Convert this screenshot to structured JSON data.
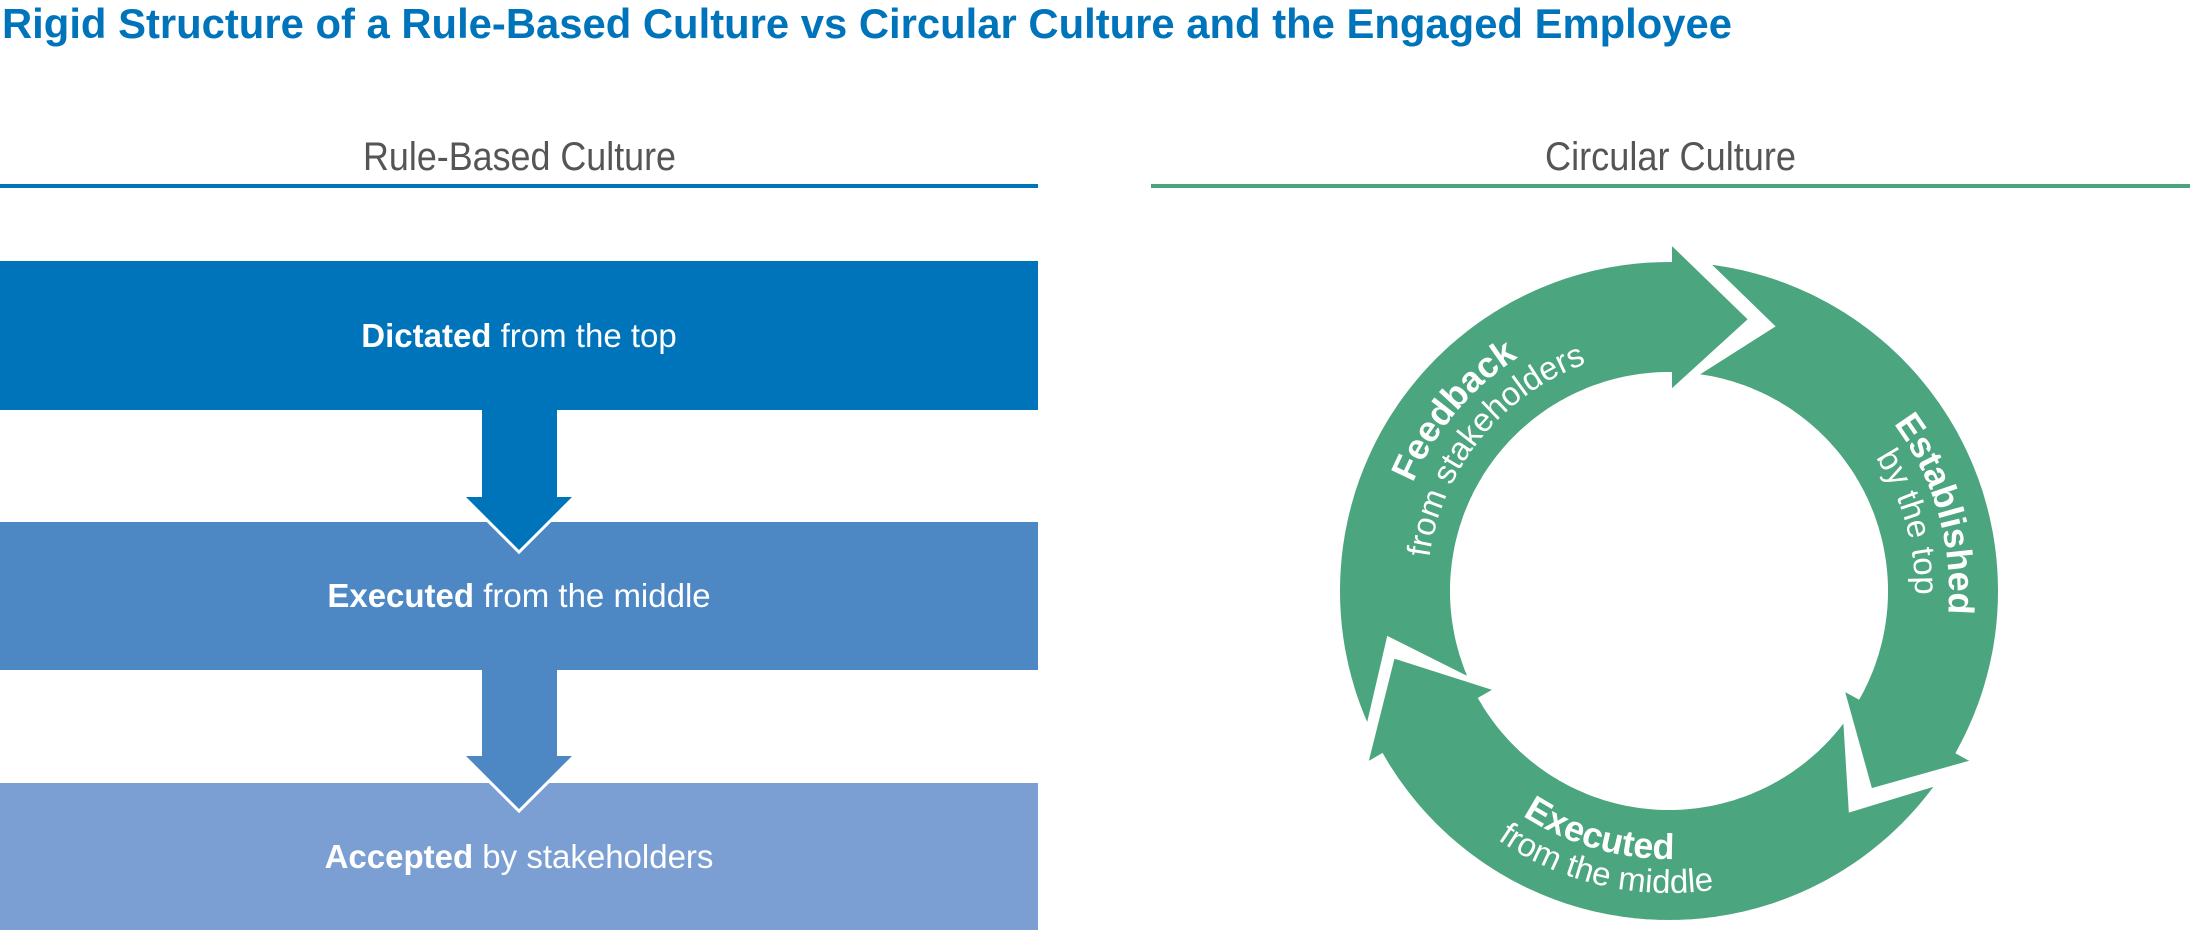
{
  "title": "Rigid Structure of a Rule-Based Culture vs Circular Culture and the Engaged Employee",
  "colors": {
    "title": "#0074bb",
    "heading_text": "#555555",
    "rule_line": "#0074bb",
    "circular_line": "#4aa57e",
    "box_top": "#0074bb",
    "box_middle": "#4d88c5",
    "box_bottom": "#7b9fd3",
    "ring": "#4ba57e"
  },
  "rule_based": {
    "heading": "Rule-Based Culture",
    "steps": [
      {
        "bold": "Dictated",
        "rest": " from the top"
      },
      {
        "bold": "Executed",
        "rest": " from the middle"
      },
      {
        "bold": "Accepted",
        "rest": " by stakeholders"
      }
    ]
  },
  "circular": {
    "heading": "Circular Culture",
    "segments": [
      {
        "bold": "Feedback",
        "rest": "from stakeholders"
      },
      {
        "bold": "Established",
        "rest": "by the top"
      },
      {
        "bold": "Executed",
        "rest": "from the middle"
      }
    ]
  }
}
